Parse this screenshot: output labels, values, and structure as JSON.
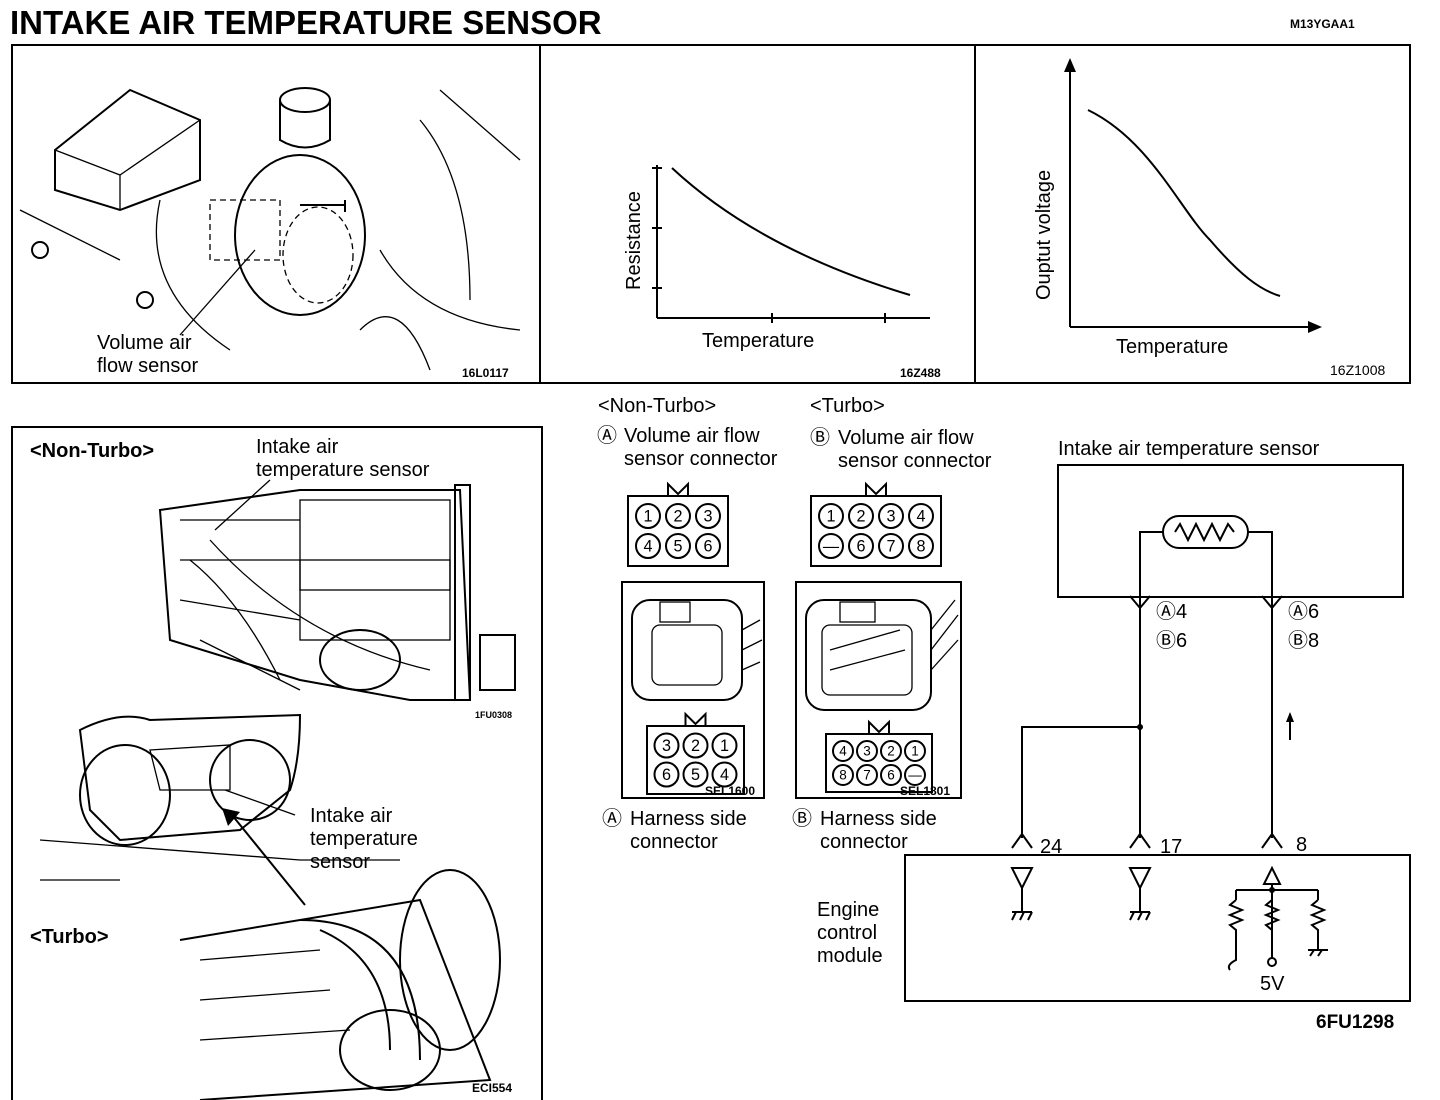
{
  "title": "INTAKE AIR TEMPERATURE SENSOR",
  "doc_code": "M13YGAA1",
  "panel_location": {
    "label": "Volume air\nflow sensor",
    "code": "16L0117"
  },
  "panel_resistance": {
    "ylabel": "Resistance",
    "xlabel": "Temperature",
    "code": "16Z488"
  },
  "panel_voltage": {
    "ylabel": "Ouptut voltage",
    "xlabel": "Temperature",
    "code": "16Z1008"
  },
  "panel_install": {
    "non_turbo_label": "<Non-Turbo>",
    "non_turbo_sensor": "Intake air\ntemperature sensor",
    "non_turbo_code": "1FU0308",
    "turbo_label": "<Turbo>",
    "turbo_sensor": "Intake air\ntemperature\nsensor",
    "code": "ECI554"
  },
  "connectors": {
    "non_turbo": {
      "heading": "<Non-Turbo>",
      "mark": "Ⓐ",
      "title": "Volume air flow\nsensor connector",
      "pins": [
        [
          "1",
          "2",
          "3"
        ],
        [
          "4",
          "5",
          "6"
        ]
      ],
      "harness_pins": [
        [
          "3",
          "2",
          "1"
        ],
        [
          "6",
          "5",
          "4"
        ]
      ],
      "code": "SEL1600",
      "harness_label": "Harness side\nconnector"
    },
    "turbo": {
      "heading": "<Turbo>",
      "mark": "Ⓑ",
      "title": "Volume air flow\nsensor connector",
      "pins": [
        [
          "1",
          "2",
          "3",
          "4"
        ],
        [
          "—",
          "6",
          "7",
          "8"
        ]
      ],
      "harness_pins": [
        [
          "4",
          "3",
          "2",
          "1"
        ],
        [
          "8",
          "7",
          "6",
          "—"
        ]
      ],
      "code": "SEL1801",
      "harness_label": "Harness side\nconnector"
    }
  },
  "circuit": {
    "sensor_label": "Intake air  temperature  sensor",
    "left_terminal": [
      "Ⓐ4",
      "Ⓑ6"
    ],
    "right_terminal": [
      "Ⓐ6",
      "Ⓑ8"
    ],
    "ecm_pins": [
      "24",
      "17",
      "8"
    ],
    "ecm_label": "Engine\ncontrol\nmodule",
    "voltage": "5V",
    "code": "6FU1298"
  }
}
